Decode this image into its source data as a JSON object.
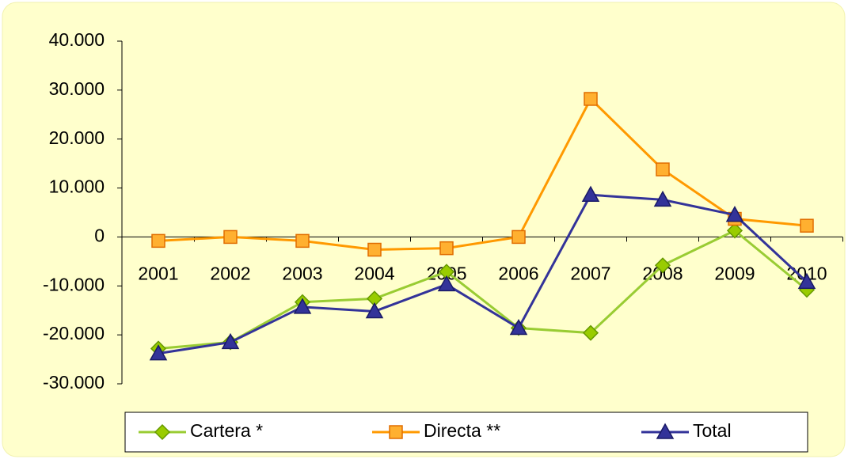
{
  "chart_data": {
    "type": "line",
    "categories": [
      "2001",
      "2002",
      "2003",
      "2004",
      "2005",
      "2006",
      "2007",
      "2008",
      "2009",
      "2010"
    ],
    "series": [
      {
        "name": "Cartera *",
        "color": "#99cc33",
        "marker": "diamond",
        "values": [
          -22800,
          -21500,
          -13300,
          -12600,
          -7100,
          -18600,
          -19600,
          -5800,
          1300,
          -10800
        ]
      },
      {
        "name": "Directa **",
        "color": "#ff9900",
        "marker": "square",
        "values": [
          -800,
          0,
          -800,
          -2600,
          -2300,
          0,
          28200,
          13800,
          3700,
          2300
        ]
      },
      {
        "name": "Total",
        "color": "#333399",
        "marker": "triangle",
        "values": [
          -23800,
          -21500,
          -14300,
          -15200,
          -9700,
          -18600,
          8600,
          7600,
          4500,
          -9200
        ]
      }
    ],
    "ylim": [
      -30000,
      40000
    ],
    "yticks": [
      {
        "value": 40000,
        "label": "40.000"
      },
      {
        "value": 30000,
        "label": "30.000"
      },
      {
        "value": 20000,
        "label": "20.000"
      },
      {
        "value": 10000,
        "label": "10.000"
      },
      0,
      {
        "value": -10000,
        "label": "-10.000"
      },
      {
        "value": -20000,
        "label": "-20.000"
      },
      {
        "value": -30000,
        "label": "-30.000"
      }
    ],
    "legend": "bottom"
  }
}
